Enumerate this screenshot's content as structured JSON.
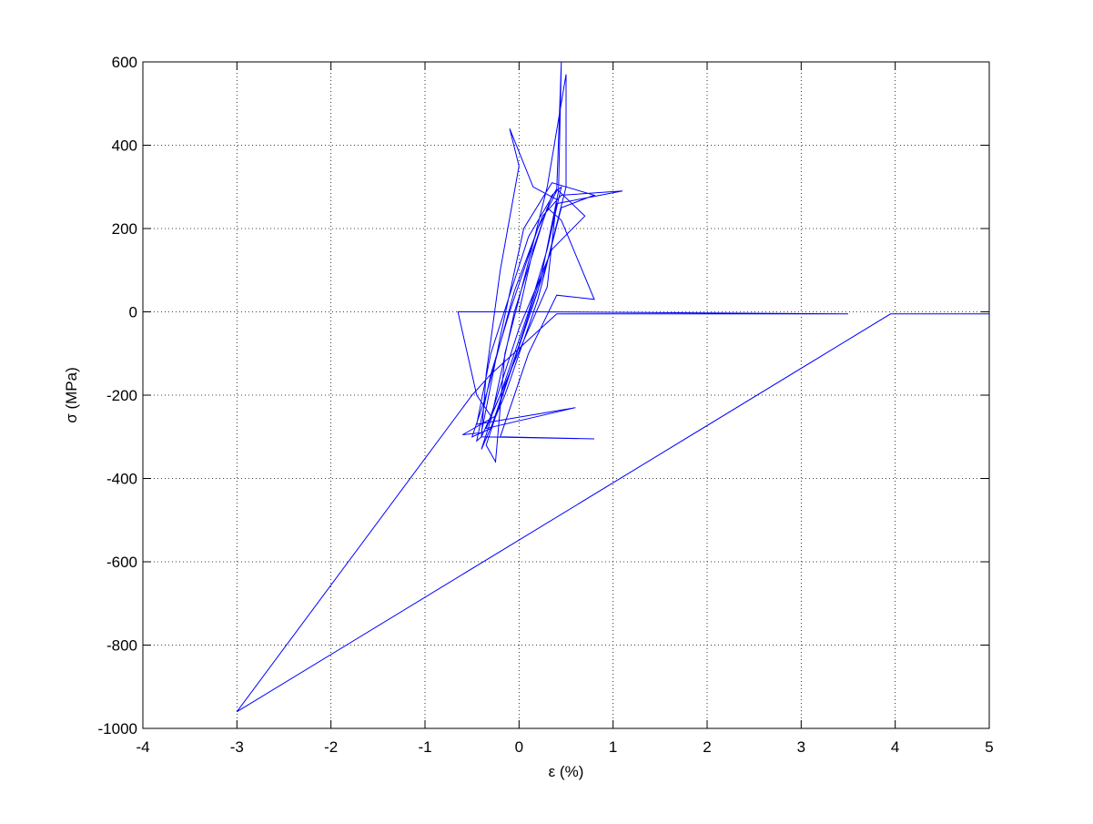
{
  "chart_data": {
    "type": "line",
    "xlabel": "ε (%)",
    "ylabel": "σ (MPa)",
    "color": "#0000ff",
    "x": [
      0,
      0.15,
      0.35,
      0.45,
      0.3,
      0.1,
      -0.2,
      -0.4,
      -0.45,
      -0.3,
      -0.1,
      0.2,
      0.4,
      0.45,
      0.42,
      0.25,
      0,
      -0.3,
      -0.5,
      -0.35,
      -0.05,
      0.25,
      0.45,
      1.1,
      0.4,
      0.2,
      -0.1,
      -0.35,
      -0.25,
      -0.15,
      0.1,
      0.3,
      0.5,
      0.5,
      0.3,
      0.05,
      -0.25,
      -0.6,
      -0.4,
      -0.2,
      0.05,
      0.35,
      0.8,
      0.45,
      0.2,
      -0.15,
      -0.4,
      -0.3,
      -0.05,
      0.3,
      0.45,
      0.8,
      0.4,
      0.1,
      -0.2,
      0.8,
      -0.4,
      -0.35,
      -0.2,
      0,
      -0.1,
      0.15,
      0.4,
      0.3,
      -0.05,
      -0.35,
      0.6,
      -0.45,
      -0.3,
      0.1,
      0.4,
      0.7,
      0.35,
      0,
      -0.3,
      -0.45,
      -0.65,
      -0.3,
      0.2,
      3.5,
      0.4,
      -0.3,
      -0.5,
      -3,
      3.95,
      5
    ],
    "values": [
      0,
      150,
      280,
      300,
      150,
      0,
      -200,
      -300,
      -310,
      -150,
      0,
      200,
      290,
      600,
      290,
      100,
      -80,
      -280,
      -300,
      -200,
      50,
      230,
      280,
      290,
      260,
      50,
      -150,
      -320,
      -360,
      -100,
      120,
      300,
      570,
      300,
      120,
      -50,
      -250,
      -295,
      -290,
      -60,
      200,
      310,
      280,
      250,
      30,
      -200,
      -330,
      -260,
      0,
      250,
      220,
      30,
      40,
      -100,
      -300,
      -305,
      -300,
      -150,
      100,
      350,
      440,
      300,
      270,
      60,
      -120,
      -280,
      -230,
      -270,
      -100,
      180,
      295,
      230,
      150,
      -40,
      -250,
      -200,
      0,
      0,
      0,
      -5,
      -5,
      -150,
      -200,
      -960,
      -5,
      -5
    ],
    "xlim": [
      -4,
      5
    ],
    "xticks": [
      -4,
      -3,
      -2,
      -1,
      0,
      1,
      2,
      3,
      4,
      5
    ],
    "ylim": [
      -1000,
      600
    ],
    "yticks": [
      -1000,
      -800,
      -600,
      -400,
      -200,
      0,
      200,
      400,
      600
    ],
    "grid": true
  }
}
